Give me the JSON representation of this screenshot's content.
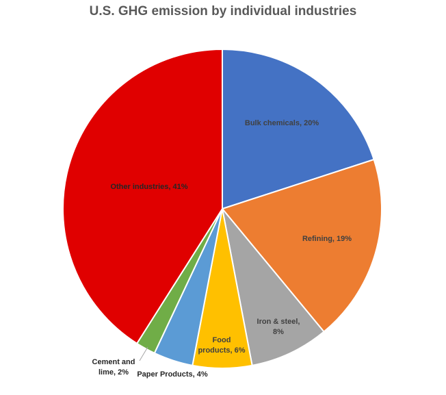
{
  "chart_data": {
    "type": "pie",
    "title": "U.S. GHG emission by individual industries",
    "slices": [
      {
        "label": "Bulk chemicals, 20%",
        "value": 20,
        "color": "#4472C4"
      },
      {
        "label": "Refining, 19%",
        "value": 19,
        "color": "#ED7D31"
      },
      {
        "label": "Iron & steel, 8%",
        "value": 8,
        "color": "#A5A5A5"
      },
      {
        "label": "Food products, 6%",
        "value": 6,
        "color": "#FFC000"
      },
      {
        "label": "Paper Products, 4%",
        "value": 4,
        "color": "#5B9BD5"
      },
      {
        "label": "Cement and lime, 2%",
        "value": 2,
        "color": "#70AD47"
      },
      {
        "label": "Other industries, 41%",
        "value": 41,
        "color": "#E00000"
      }
    ],
    "legend": "none"
  }
}
